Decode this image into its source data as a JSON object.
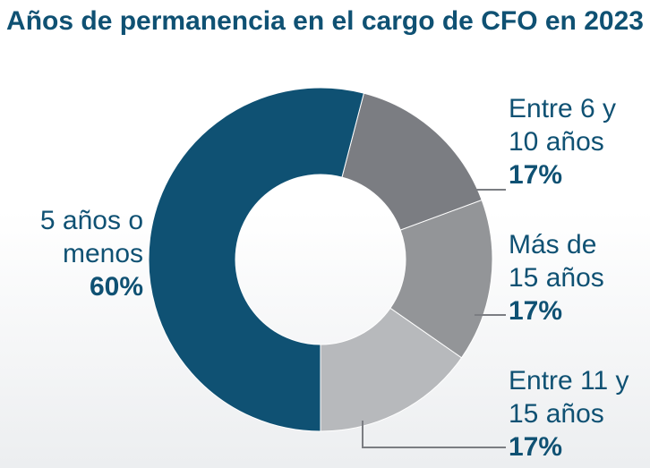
{
  "chart_data": {
    "type": "donut",
    "title": "Años de permanencia en el cargo de CFO en 2023",
    "categories": [
      "5 años o menos",
      "Entre 6 y 10 años",
      "Más de 15 años",
      "Entre 11 y 15 años"
    ],
    "values": [
      60,
      17,
      17,
      17
    ],
    "value_labels": [
      "60%",
      "17%",
      "17%",
      "17%"
    ],
    "colors": [
      "#0f5173",
      "#7b7d82",
      "#939598",
      "#b7b9bc"
    ]
  }
}
